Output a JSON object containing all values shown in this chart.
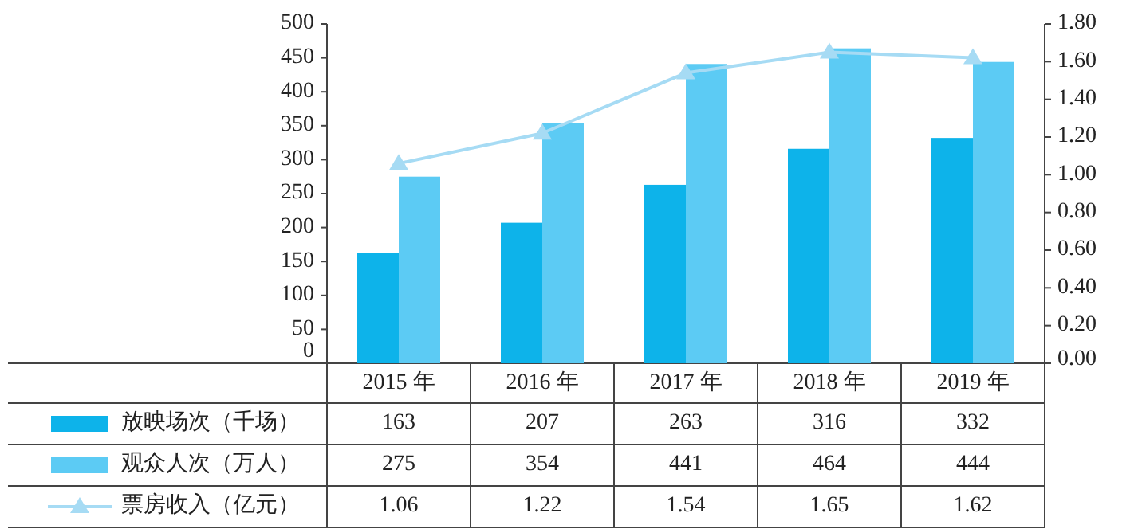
{
  "chart_data": {
    "type": "bar",
    "categories": [
      "2015 年",
      "2016 年",
      "2017 年",
      "2018 年",
      "2019 年"
    ],
    "series": [
      {
        "name": "放映场次（千场）",
        "color": "#0db3ea",
        "values": [
          163,
          207,
          263,
          316,
          332
        ]
      },
      {
        "name": "观众人次（万人）",
        "color": "#5ccbf4",
        "values": [
          275,
          354,
          441,
          464,
          444
        ]
      },
      {
        "name": "票房收入（亿元）",
        "color": "#a6dbf4",
        "type": "line",
        "axis": "y2",
        "marker": "triangle",
        "values": [
          1.06,
          1.22,
          1.54,
          1.65,
          1.62
        ]
      }
    ],
    "ylim": [
      0,
      500
    ],
    "yticks": [
      0,
      50,
      100,
      150,
      200,
      250,
      300,
      350,
      400,
      450,
      500
    ],
    "y2lim": [
      0,
      1.8
    ],
    "y2ticks": [
      {
        "value": 0,
        "label": "0.00"
      },
      {
        "value": 0.2,
        "label": "0.20"
      },
      {
        "value": 0.4,
        "label": "0.40"
      },
      {
        "value": 0.6,
        "label": "0.60"
      },
      {
        "value": 0.8,
        "label": "0.80"
      },
      {
        "value": 1.0,
        "label": "1.00"
      },
      {
        "value": 1.2,
        "label": "1.20"
      },
      {
        "value": 1.4,
        "label": "1.40"
      },
      {
        "value": 1.6,
        "label": "1.60"
      },
      {
        "value": 1.8,
        "label": "1.80"
      }
    ],
    "data_labels": true,
    "legend": "bottom",
    "grid": false
  }
}
